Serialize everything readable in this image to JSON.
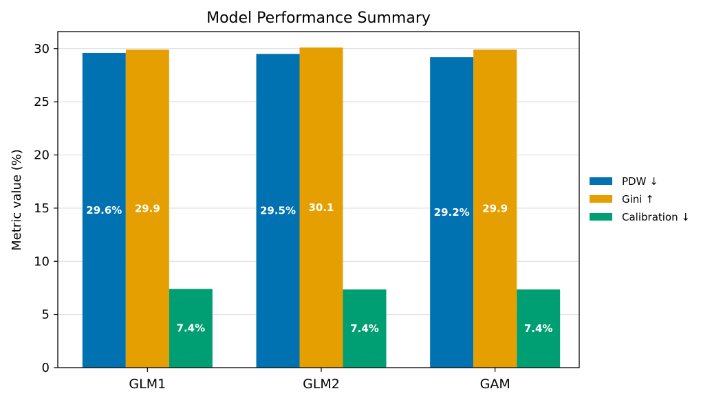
{
  "chart_data": {
    "type": "bar",
    "title": "Model Performance Summary",
    "xlabel": "",
    "ylabel": "Metric value (%)",
    "categories": [
      "GLM1",
      "GLM2",
      "GAM"
    ],
    "series": [
      {
        "name": "PDW ↓",
        "color": "#0072B2",
        "values": [
          29.6,
          29.5,
          29.2
        ],
        "labels": [
          "29.6%",
          "29.5%",
          "29.2%"
        ]
      },
      {
        "name": "Gini ↑",
        "color": "#E69F00",
        "values": [
          29.9,
          30.1,
          29.9
        ],
        "labels": [
          "29.9",
          "30.1",
          "29.9"
        ]
      },
      {
        "name": "Calibration ↓",
        "color": "#009E73",
        "values": [
          7.4,
          7.35,
          7.35
        ],
        "labels": [
          "7.4%",
          "7.4%",
          "7.4%"
        ]
      }
    ],
    "ylim": [
      0,
      31.6
    ],
    "yticks": [
      0,
      5,
      10,
      15,
      20,
      25,
      30
    ],
    "grid": "horizontal",
    "legend": "right"
  }
}
